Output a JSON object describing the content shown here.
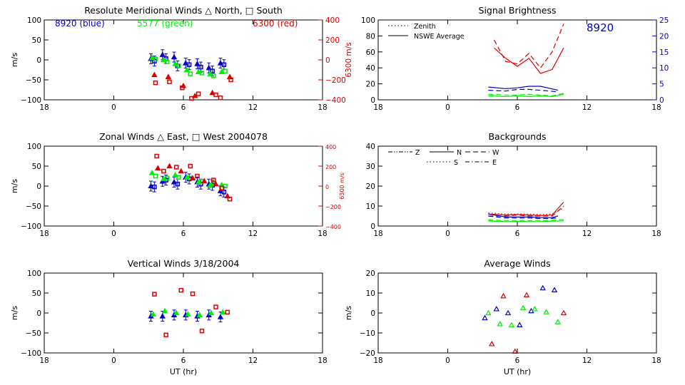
{
  "figure": {
    "xlabel": "UT (hr)",
    "x_ticks": [
      "18",
      "0",
      "6",
      "12",
      "18"
    ],
    "colors": {
      "blue": "#0000cc",
      "green": "#00ee00",
      "red": "#dd0000",
      "axis": "#000000"
    }
  },
  "chart_data": [
    {
      "id": "meridional",
      "type": "scatter",
      "title": "Resolute Meridional Winds △ North, □ South",
      "ylabel": "m/s",
      "ylim": [
        -100,
        100
      ],
      "yticks": [
        "100",
        "50",
        "0",
        "−50",
        "−100"
      ],
      "ylabel_right": "6300 m/s",
      "ylim_right": [
        -400,
        400
      ],
      "yticks_right": [
        "400",
        "200",
        "0",
        "−200",
        "−400"
      ],
      "labels": [
        {
          "text": "8920  (blue)",
          "color": "blue"
        },
        {
          "text": "5577  (green)",
          "color": "green"
        },
        {
          "text": "6300  (red)",
          "color": "red"
        }
      ],
      "series": [
        {
          "color": "blue",
          "axis": "left",
          "marker": "tri",
          "errorbars": true,
          "x": [
            3.2,
            4.2,
            5.2,
            6.2,
            7.2,
            8.2,
            9.2
          ],
          "y": [
            3,
            13,
            7,
            -8,
            -10,
            -20,
            -8
          ]
        },
        {
          "color": "blue",
          "axis": "left",
          "marker": "sq",
          "errorbars": true,
          "x": [
            3.5,
            4.5,
            5.5,
            6.5,
            7.5,
            8.5,
            9.5
          ],
          "y": [
            -3,
            3,
            -15,
            -12,
            -18,
            -28,
            -12
          ]
        },
        {
          "color": "green",
          "axis": "left",
          "marker": "tri",
          "x": [
            3.3,
            4.3,
            5.3,
            6.3,
            7.3,
            8.3,
            9.3
          ],
          "y": [
            5,
            0,
            -10,
            -25,
            -30,
            -35,
            -30
          ]
        },
        {
          "color": "green",
          "axis": "left",
          "marker": "sq",
          "x": [
            3.6,
            4.6,
            5.6,
            6.6,
            7.6,
            8.6,
            9.6
          ],
          "y": [
            2,
            -5,
            -15,
            -35,
            -33,
            -40,
            -28
          ]
        },
        {
          "color": "red",
          "axis": "right",
          "marker": "tri",
          "x": [
            3.5,
            4.7,
            6.0,
            7.0,
            8.5,
            10.0
          ],
          "y": [
            -150,
            -170,
            -260,
            -360,
            -330,
            -170
          ]
        },
        {
          "color": "red",
          "axis": "right",
          "marker": "sq",
          "x": [
            3.6,
            4.8,
            5.9,
            6.7,
            7.3,
            8.8,
            9.2,
            10.1
          ],
          "y": [
            -230,
            -220,
            -280,
            -410,
            -340,
            -350,
            -380,
            -200
          ]
        }
      ]
    },
    {
      "id": "zonal",
      "type": "scatter",
      "title": "Zonal Winds △ East, □ West 2004078",
      "ylabel": "m/s",
      "ylim": [
        -100,
        100
      ],
      "yticks": [
        "100",
        "50",
        "0",
        "−50",
        "−100"
      ],
      "ylabel_right": "6300 m/s",
      "ylim_right": [
        -400,
        400
      ],
      "yticks_right": [
        "400",
        "200",
        "0",
        "−200",
        "−400"
      ],
      "series": [
        {
          "color": "blue",
          "axis": "left",
          "marker": "tri",
          "errorbars": true,
          "x": [
            3.2,
            4.2,
            5.2,
            6.2,
            7.2,
            8.2,
            9.2
          ],
          "y": [
            0,
            12,
            10,
            22,
            10,
            5,
            -12
          ]
        },
        {
          "color": "blue",
          "axis": "left",
          "marker": "sq",
          "errorbars": true,
          "x": [
            3.5,
            4.5,
            5.5,
            6.5,
            7.5,
            8.5,
            9.5
          ],
          "y": [
            -2,
            15,
            5,
            18,
            5,
            2,
            -15
          ]
        },
        {
          "color": "green",
          "axis": "left",
          "marker": "tri",
          "x": [
            3.3,
            4.3,
            5.3,
            6.3,
            7.3,
            8.3,
            9.3
          ],
          "y": [
            33,
            18,
            28,
            22,
            10,
            2,
            3
          ]
        },
        {
          "color": "green",
          "axis": "left",
          "marker": "sq",
          "x": [
            3.6,
            4.6,
            5.6,
            6.6,
            7.6,
            8.6,
            9.6
          ],
          "y": [
            25,
            20,
            22,
            20,
            12,
            8,
            0
          ]
        },
        {
          "color": "red",
          "axis": "right",
          "marker": "tri",
          "x": [
            3.8,
            4.8,
            5.8,
            6.8,
            7.8,
            8.8,
            9.8
          ],
          "y": [
            180,
            200,
            150,
            80,
            50,
            20,
            -100
          ]
        },
        {
          "color": "red",
          "axis": "right",
          "marker": "sq",
          "x": [
            3.7,
            4.3,
            5.4,
            6.6,
            7.2,
            8.6,
            9.3,
            10.0
          ],
          "y": [
            300,
            150,
            190,
            200,
            100,
            60,
            -20,
            -130
          ]
        }
      ]
    },
    {
      "id": "vertical",
      "type": "scatter",
      "title": "Vertical Winds 3/18/2004",
      "ylabel": "m/s",
      "ylim": [
        -100,
        100
      ],
      "yticks": [
        "100",
        "50",
        "0",
        "−50",
        "−100"
      ],
      "series": [
        {
          "color": "blue",
          "axis": "left",
          "marker": "tri",
          "errorbars": true,
          "x": [
            3.2,
            4.2,
            5.2,
            6.2,
            7.2,
            8.2,
            9.2
          ],
          "y": [
            -8,
            -8,
            -5,
            -5,
            -8,
            -5,
            -10
          ]
        },
        {
          "color": "green",
          "axis": "left",
          "marker": "tri",
          "x": [
            3.4,
            4.4,
            5.4,
            6.4,
            7.4,
            8.4,
            9.4
          ],
          "y": [
            -3,
            5,
            0,
            -3,
            -5,
            0,
            2
          ]
        },
        {
          "color": "red",
          "axis": "left",
          "marker": "sq",
          "x": [
            3.5,
            4.5,
            5.8,
            6.8,
            7.6,
            8.8,
            9.8
          ],
          "y": [
            47,
            -55,
            57,
            48,
            -45,
            15,
            2
          ]
        }
      ]
    },
    {
      "id": "brightness",
      "type": "line",
      "title": "Signal Brightness",
      "ylim": [
        0,
        100
      ],
      "yticks": [
        "100",
        "80",
        "60",
        "40",
        "20",
        "0"
      ],
      "ylim_right": [
        0,
        25
      ],
      "yticks_right": [
        "25",
        "20",
        "15",
        "10",
        "5",
        "0"
      ],
      "right_axis_color": "blue",
      "inset_label": {
        "text": "8920",
        "color": "blue"
      },
      "legend": [
        {
          "text": "Zenith",
          "style": "dotted"
        },
        {
          "text": "NSWE Average",
          "style": "solid"
        }
      ],
      "series": [
        {
          "color": "red",
          "axis": "left",
          "style": "dashed",
          "x": [
            4,
            5,
            6,
            7,
            8,
            9,
            10
          ],
          "y": [
            75,
            48,
            45,
            58,
            40,
            60,
            95
          ]
        },
        {
          "color": "red",
          "axis": "left",
          "style": "solid",
          "x": [
            4,
            5,
            6,
            7,
            8,
            9,
            10
          ],
          "y": [
            65,
            52,
            42,
            52,
            33,
            38,
            65
          ]
        },
        {
          "color": "blue",
          "axis": "left",
          "style": "solid",
          "x": [
            3.5,
            5,
            6,
            7,
            8,
            9.5
          ],
          "y": [
            16,
            14,
            15,
            17,
            17,
            12
          ]
        },
        {
          "color": "blue",
          "axis": "left",
          "style": "dashed",
          "x": [
            3.5,
            5,
            6,
            7,
            8,
            9.5
          ],
          "y": [
            12,
            11,
            13,
            13,
            12,
            10
          ]
        },
        {
          "color": "green",
          "axis": "left",
          "style": "solid",
          "x": [
            3.5,
            5,
            6,
            7,
            8,
            9,
            10
          ],
          "y": [
            5,
            4,
            5,
            4,
            5,
            4,
            7
          ]
        },
        {
          "color": "green",
          "axis": "left",
          "style": "dashed",
          "x": [
            3.5,
            5,
            6,
            7,
            8,
            9,
            10
          ],
          "y": [
            7,
            6,
            6,
            7,
            6,
            5,
            8
          ]
        }
      ]
    },
    {
      "id": "backgrounds",
      "type": "line",
      "title": "Backgrounds",
      "ylim": [
        0,
        40
      ],
      "yticks": [
        "40",
        "30",
        "20",
        "10",
        "0"
      ],
      "legend": [
        {
          "text": "Z",
          "style": "dashdotdot"
        },
        {
          "text": "N",
          "style": "solid"
        },
        {
          "text": "W",
          "style": "dashed"
        },
        {
          "text": "S",
          "style": "dotted"
        },
        {
          "text": "E",
          "style": "dashdot"
        }
      ],
      "series": [
        {
          "color": "red",
          "axis": "left",
          "style": "solid",
          "x": [
            3.5,
            5,
            6,
            7,
            8,
            9,
            10
          ],
          "y": [
            6,
            5.5,
            5.8,
            5.5,
            5.2,
            5.5,
            12
          ]
        },
        {
          "color": "red",
          "axis": "left",
          "style": "dashed",
          "x": [
            3.5,
            5,
            6,
            7,
            8,
            9,
            10
          ],
          "y": [
            5,
            5,
            5.5,
            5,
            5,
            5,
            10
          ]
        },
        {
          "color": "red",
          "axis": "left",
          "style": "dotted",
          "x": [
            3.5,
            5,
            6,
            7,
            8,
            9,
            10
          ],
          "y": [
            6.5,
            6,
            6,
            6,
            5.8,
            6,
            9
          ]
        },
        {
          "color": "blue",
          "axis": "left",
          "style": "solid",
          "x": [
            3.5,
            5,
            6,
            7,
            8,
            9,
            9.5
          ],
          "y": [
            6,
            4.5,
            4.5,
            4.5,
            4.2,
            4.2,
            5
          ]
        },
        {
          "color": "blue",
          "axis": "left",
          "style": "dashed",
          "x": [
            3.5,
            5,
            6,
            7,
            8,
            9,
            9.5
          ],
          "y": [
            5,
            4,
            4,
            4,
            3.8,
            3.8,
            4.2
          ]
        },
        {
          "color": "green",
          "axis": "left",
          "style": "solid",
          "x": [
            3.5,
            5,
            6,
            7,
            8,
            9,
            10
          ],
          "y": [
            2.5,
            2.2,
            2.3,
            2.2,
            2.2,
            2.4,
            2.6
          ]
        },
        {
          "color": "green",
          "axis": "left",
          "style": "dashed",
          "x": [
            3.5,
            5,
            6,
            7,
            8,
            9,
            10
          ],
          "y": [
            3,
            2.8,
            2.8,
            2.7,
            2.8,
            2.9,
            3.2
          ]
        }
      ]
    },
    {
      "id": "average",
      "type": "scatter",
      "title": "Average Winds",
      "ylabel": "m/s",
      "ylim": [
        -20,
        20
      ],
      "yticks": [
        "20",
        "10",
        "0",
        "−10",
        "−20"
      ],
      "series": [
        {
          "color": "blue",
          "axis": "left",
          "marker": "tri-open",
          "x": [
            3.2,
            4.2,
            5.2,
            6.2,
            7.2,
            8.2,
            9.2
          ],
          "y": [
            -2.5,
            2,
            0,
            -6,
            1,
            12.5,
            11.5
          ]
        },
        {
          "color": "green",
          "axis": "left",
          "marker": "tri-open",
          "x": [
            3.5,
            4.5,
            5.5,
            6.5,
            7.5,
            8.5,
            9.5
          ],
          "y": [
            0,
            -5.5,
            -6,
            2.5,
            2,
            0.5,
            -4.5
          ]
        },
        {
          "color": "red",
          "axis": "left",
          "marker": "tri-open",
          "x": [
            3.8,
            4.8,
            5.8,
            6.8,
            10.0
          ],
          "y": [
            -15.5,
            8.5,
            -20.5,
            9,
            0
          ]
        }
      ]
    }
  ]
}
